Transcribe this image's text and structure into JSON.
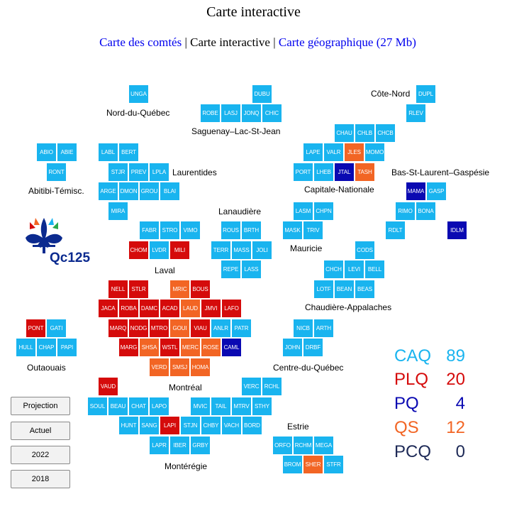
{
  "title": "Carte interactive",
  "nav": {
    "link1": "Carte des comtés",
    "sep1": " | ",
    "current": "Carte interactive",
    "sep2": " | ",
    "link2": "Carte géographique (27 Mb)"
  },
  "colors": {
    "CAQ": "#19b4ef",
    "PLQ": "#d50b0b",
    "PQ": "#0a09b2",
    "QS": "#f26524",
    "PCQ": "#1e2a57"
  },
  "regions": [
    "Nord-du-Québec",
    "Saguenay–Lac-St-Jean",
    "Côte-Nord",
    "Laurentides",
    "Capitale-Nationale",
    "Bas-St-Laurent–Gaspésie",
    "Abitibi-Témisc.",
    "Lanaudière",
    "Mauricie",
    "Laval",
    "Chaudière-Appalaches",
    "Outaouais",
    "Centre-du-Québec",
    "Montréal",
    "Estrie",
    "Montérégie"
  ],
  "ridings": [
    [
      "UNGA",
      "CAQ"
    ],
    [
      "DUBU",
      "CAQ"
    ],
    [
      "DUPL",
      "CAQ"
    ],
    [
      "ROBE",
      "CAQ"
    ],
    [
      "LASJ",
      "CAQ"
    ],
    [
      "JONQ",
      "CAQ"
    ],
    [
      "CHIC",
      "CAQ"
    ],
    [
      "RLEV",
      "CAQ"
    ],
    [
      "CHAU",
      "CAQ"
    ],
    [
      "CHLB",
      "CAQ"
    ],
    [
      "CHCB",
      "CAQ"
    ],
    [
      "ABIO",
      "CAQ"
    ],
    [
      "ABIE",
      "CAQ"
    ],
    [
      "LABL",
      "CAQ"
    ],
    [
      "BERT",
      "CAQ"
    ],
    [
      "LAPE",
      "CAQ"
    ],
    [
      "VALR",
      "CAQ"
    ],
    [
      "JLES",
      "QS"
    ],
    [
      "MOMO",
      "CAQ"
    ],
    [
      "RONT",
      "CAQ"
    ],
    [
      "STJR",
      "CAQ"
    ],
    [
      "PREV",
      "CAQ"
    ],
    [
      "LPLA",
      "CAQ"
    ],
    [
      "PORT",
      "CAQ"
    ],
    [
      "LHEB",
      "CAQ"
    ],
    [
      "JTAL",
      "PQ"
    ],
    [
      "TASH",
      "QS"
    ],
    [
      "ARGE",
      "CAQ"
    ],
    [
      "DMON",
      "CAQ"
    ],
    [
      "GROU",
      "CAQ"
    ],
    [
      "BLAI",
      "CAQ"
    ],
    [
      "MAMA",
      "PQ"
    ],
    [
      "GASP",
      "CAQ"
    ],
    [
      "MIRA",
      "CAQ"
    ],
    [
      "LASM",
      "CAQ"
    ],
    [
      "CHPN",
      "CAQ"
    ],
    [
      "RIMO",
      "CAQ"
    ],
    [
      "BONA",
      "CAQ"
    ],
    [
      "FABR",
      "CAQ"
    ],
    [
      "STRO",
      "CAQ"
    ],
    [
      "VIMO",
      "CAQ"
    ],
    [
      "ROUS",
      "CAQ"
    ],
    [
      "BRTH",
      "CAQ"
    ],
    [
      "MASK",
      "CAQ"
    ],
    [
      "TRIV",
      "CAQ"
    ],
    [
      "RDLT",
      "CAQ"
    ],
    [
      "IDLM",
      "PQ"
    ],
    [
      "CHOM",
      "PLQ"
    ],
    [
      "LVDR",
      "CAQ"
    ],
    [
      "MILI",
      "PLQ"
    ],
    [
      "TERR",
      "CAQ"
    ],
    [
      "MASS",
      "CAQ"
    ],
    [
      "JOLI",
      "CAQ"
    ],
    [
      "CODS",
      "CAQ"
    ],
    [
      "REPE",
      "CAQ"
    ],
    [
      "LASS",
      "CAQ"
    ],
    [
      "CHCH",
      "CAQ"
    ],
    [
      "LEVI",
      "CAQ"
    ],
    [
      "BELL",
      "CAQ"
    ],
    [
      "NELL",
      "PLQ"
    ],
    [
      "STLR",
      "PLQ"
    ],
    [
      "MRIC",
      "QS"
    ],
    [
      "BOUS",
      "PLQ"
    ],
    [
      "LOTF",
      "CAQ"
    ],
    [
      "BEAN",
      "CAQ"
    ],
    [
      "BEAS",
      "CAQ"
    ],
    [
      "JACA",
      "PLQ"
    ],
    [
      "ROBA",
      "PLQ"
    ],
    [
      "DAMC",
      "PLQ"
    ],
    [
      "ACAD",
      "PLQ"
    ],
    [
      "LAUD",
      "QS"
    ],
    [
      "JMVI",
      "PLQ"
    ],
    [
      "LAFO",
      "PLQ"
    ],
    [
      "PONT",
      "PLQ"
    ],
    [
      "GATI",
      "CAQ"
    ],
    [
      "MARQ",
      "PLQ"
    ],
    [
      "NODG",
      "PLQ"
    ],
    [
      "MTRO",
      "PLQ"
    ],
    [
      "GOUI",
      "QS"
    ],
    [
      "VIAU",
      "PLQ"
    ],
    [
      "ANLR",
      "CAQ"
    ],
    [
      "PATR",
      "CAQ"
    ],
    [
      "NICB",
      "CAQ"
    ],
    [
      "ARTH",
      "CAQ"
    ],
    [
      "HULL",
      "CAQ"
    ],
    [
      "CHAP",
      "CAQ"
    ],
    [
      "PAPI",
      "CAQ"
    ],
    [
      "MARG",
      "PLQ"
    ],
    [
      "SHSA",
      "QS"
    ],
    [
      "WSTL",
      "PLQ"
    ],
    [
      "MERC",
      "QS"
    ],
    [
      "ROSE",
      "QS"
    ],
    [
      "CAML",
      "PQ"
    ],
    [
      "JOHN",
      "CAQ"
    ],
    [
      "DRBF",
      "CAQ"
    ],
    [
      "VERD",
      "QS"
    ],
    [
      "SMSJ",
      "QS"
    ],
    [
      "HOMA",
      "QS"
    ],
    [
      "VAUD",
      "PLQ"
    ],
    [
      "VERC",
      "CAQ"
    ],
    [
      "RCHL",
      "CAQ"
    ],
    [
      "SOUL",
      "CAQ"
    ],
    [
      "BEAU",
      "CAQ"
    ],
    [
      "CHAT",
      "CAQ"
    ],
    [
      "LAPO",
      "CAQ"
    ],
    [
      "MVIC",
      "CAQ"
    ],
    [
      "TAIL",
      "CAQ"
    ],
    [
      "MTRV",
      "CAQ"
    ],
    [
      "STHY",
      "CAQ"
    ],
    [
      "HUNT",
      "CAQ"
    ],
    [
      "SANG",
      "CAQ"
    ],
    [
      "LAPI",
      "PLQ"
    ],
    [
      "STJN",
      "CAQ"
    ],
    [
      "CHBY",
      "CAQ"
    ],
    [
      "VACH",
      "CAQ"
    ],
    [
      "BORD",
      "CAQ"
    ],
    [
      "LAPR",
      "CAQ"
    ],
    [
      "IBER",
      "CAQ"
    ],
    [
      "GRBY",
      "CAQ"
    ],
    [
      "ORFO",
      "CAQ"
    ],
    [
      "RCHM",
      "CAQ"
    ],
    [
      "MEGA",
      "CAQ"
    ],
    [
      "BROM",
      "CAQ"
    ],
    [
      "SHER",
      "QS"
    ],
    [
      "STFR",
      "CAQ"
    ]
  ],
  "summary": [
    {
      "party": "CAQ",
      "seats": "89",
      "color": "#19b4ef"
    },
    {
      "party": "PLQ",
      "seats": "20",
      "color": "#d50b0b"
    },
    {
      "party": "PQ",
      "seats": "4",
      "color": "#0a09b2"
    },
    {
      "party": "QS",
      "seats": "12",
      "color": "#f26524"
    },
    {
      "party": "PCQ",
      "seats": "0",
      "color": "#1e2a57"
    }
  ],
  "buttons": [
    "Projection",
    "Actuel",
    "2022",
    "2018"
  ],
  "logo": {
    "text": "Qc125",
    "petal_colors": [
      "#d50b0b",
      "#f26524",
      "#19b4ef",
      "#2aa84a"
    ],
    "lily_color": "#0b2a8f"
  }
}
